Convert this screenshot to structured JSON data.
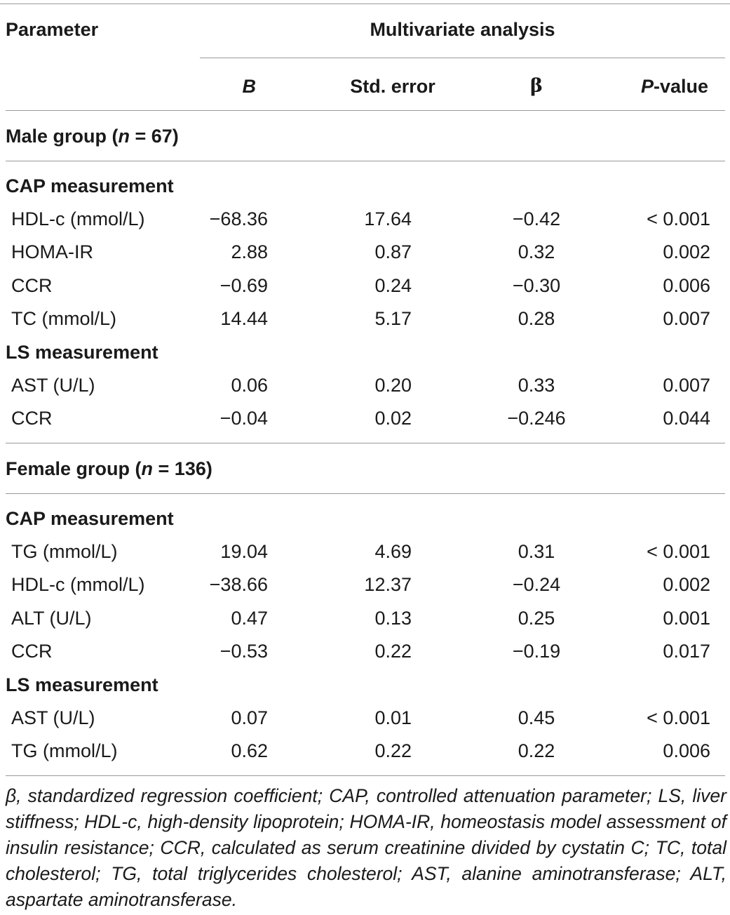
{
  "header": {
    "parameter": "Parameter",
    "multivariate": "Multivariate analysis",
    "col_b": "B",
    "col_se": "Std. error",
    "col_beta": "β",
    "col_p_italic": "P",
    "col_p_rest": "-value"
  },
  "male": {
    "title_pre": "Male group (",
    "n_var": "n",
    "title_post": " = 67)",
    "cap_label": "CAP measurement",
    "cap_rows": [
      {
        "param": "HDL-c (mmol/L)",
        "b": "−68.36",
        "se": "17.64",
        "beta": "−0.42",
        "p": "< 0.001"
      },
      {
        "param": "HOMA-IR",
        "b": "2.88",
        "se": "0.87",
        "beta": "0.32",
        "p": "0.002"
      },
      {
        "param": "CCR",
        "b": "−0.69",
        "se": "0.24",
        "beta": "−0.30",
        "p": "0.006"
      },
      {
        "param": "TC (mmol/L)",
        "b": "14.44",
        "se": "5.17",
        "beta": "0.28",
        "p": "0.007"
      }
    ],
    "ls_label": "LS measurement",
    "ls_rows": [
      {
        "param": "AST (U/L)",
        "b": "0.06",
        "se": "0.20",
        "beta": "0.33",
        "p": "0.007"
      },
      {
        "param": "CCR",
        "b": "−0.04",
        "se": "0.02",
        "beta": "−0.246",
        "p": "0.044"
      }
    ]
  },
  "female": {
    "title_pre": "Female group (",
    "n_var": "n",
    "title_post": " = 136)",
    "cap_label": "CAP measurement",
    "cap_rows": [
      {
        "param": "TG (mmol/L)",
        "b": "19.04",
        "se": "4.69",
        "beta": "0.31",
        "p": "< 0.001"
      },
      {
        "param": "HDL-c (mmol/L)",
        "b": "−38.66",
        "se": "12.37",
        "beta": "−0.24",
        "p": "0.002"
      },
      {
        "param": "ALT (U/L)",
        "b": "0.47",
        "se": "0.13",
        "beta": "0.25",
        "p": "0.001"
      },
      {
        "param": "CCR",
        "b": "−0.53",
        "se": "0.22",
        "beta": "−0.19",
        "p": "0.017"
      }
    ],
    "ls_label": "LS measurement",
    "ls_rows": [
      {
        "param": "AST (U/L)",
        "b": "0.07",
        "se": "0.01",
        "beta": "0.45",
        "p": "< 0.001"
      },
      {
        "param": "TG (mmol/L)",
        "b": "0.62",
        "se": "0.22",
        "beta": "0.22",
        "p": "0.006"
      }
    ]
  },
  "footnote": "β, standardized regression coefficient; CAP, controlled attenuation parameter; LS, liver stiffness; HDL-c, high-density lipoprotein; HOMA-IR, homeostasis model assessment of insulin resistance; CCR, calculated as serum creatinine divided by cystatin C; TC, total cholesterol; TG, total triglycerides cholesterol; AST, alanine aminotransferase; ALT, aspartate aminotransferase."
}
